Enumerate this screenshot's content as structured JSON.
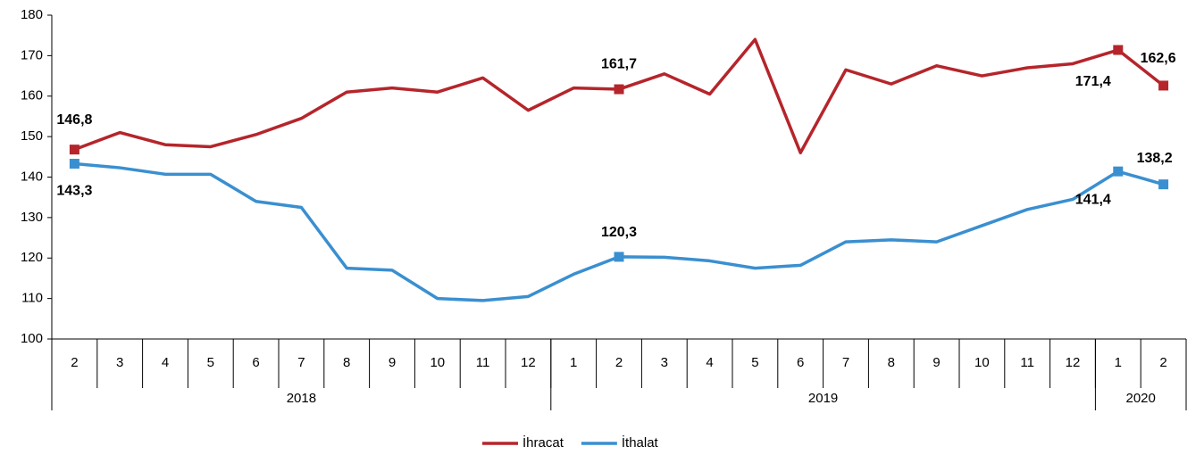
{
  "chart_data": {
    "type": "line",
    "categories": [
      "2",
      "3",
      "4",
      "5",
      "6",
      "7",
      "8",
      "9",
      "10",
      "11",
      "12",
      "1",
      "2",
      "3",
      "4",
      "5",
      "6",
      "7",
      "8",
      "9",
      "10",
      "11",
      "12",
      "1",
      "2"
    ],
    "groups": [
      {
        "label": "2018",
        "size": 11
      },
      {
        "label": "2019",
        "size": 12
      },
      {
        "label": "2020",
        "size": 2
      }
    ],
    "series": [
      {
        "name": "İhracat",
        "color": "#b5252b",
        "values": [
          146.8,
          151,
          148,
          147.5,
          150.5,
          154.5,
          161,
          162,
          161,
          164.5,
          156.5,
          162,
          161.7,
          165.5,
          160.5,
          174,
          146,
          166.5,
          163,
          167.5,
          165,
          167,
          168,
          171.4,
          162.6
        ],
        "value_labels": [
          "146,8",
          null,
          null,
          null,
          null,
          null,
          null,
          null,
          null,
          null,
          null,
          null,
          "161,7",
          null,
          null,
          null,
          null,
          null,
          null,
          null,
          null,
          null,
          null,
          "171,4",
          "162,6"
        ]
      },
      {
        "name": "İthalat",
        "color": "#3a8fd0",
        "values": [
          143.3,
          142.3,
          140.7,
          140.7,
          134,
          132.5,
          117.5,
          117,
          110,
          109.5,
          110.5,
          116,
          120.3,
          120.2,
          119.3,
          117.5,
          118.2,
          124,
          124.5,
          124,
          128,
          132,
          134.5,
          141.4,
          138.2
        ],
        "value_labels": [
          "143,3",
          null,
          null,
          null,
          null,
          null,
          null,
          null,
          null,
          null,
          null,
          null,
          "120,3",
          null,
          null,
          null,
          null,
          null,
          null,
          null,
          null,
          null,
          null,
          "141,4",
          "138,2"
        ]
      }
    ],
    "ylim": [
      100,
      180
    ],
    "yticks": [
      100,
      110,
      120,
      130,
      140,
      150,
      160,
      170,
      180
    ],
    "legend": "bottom"
  }
}
